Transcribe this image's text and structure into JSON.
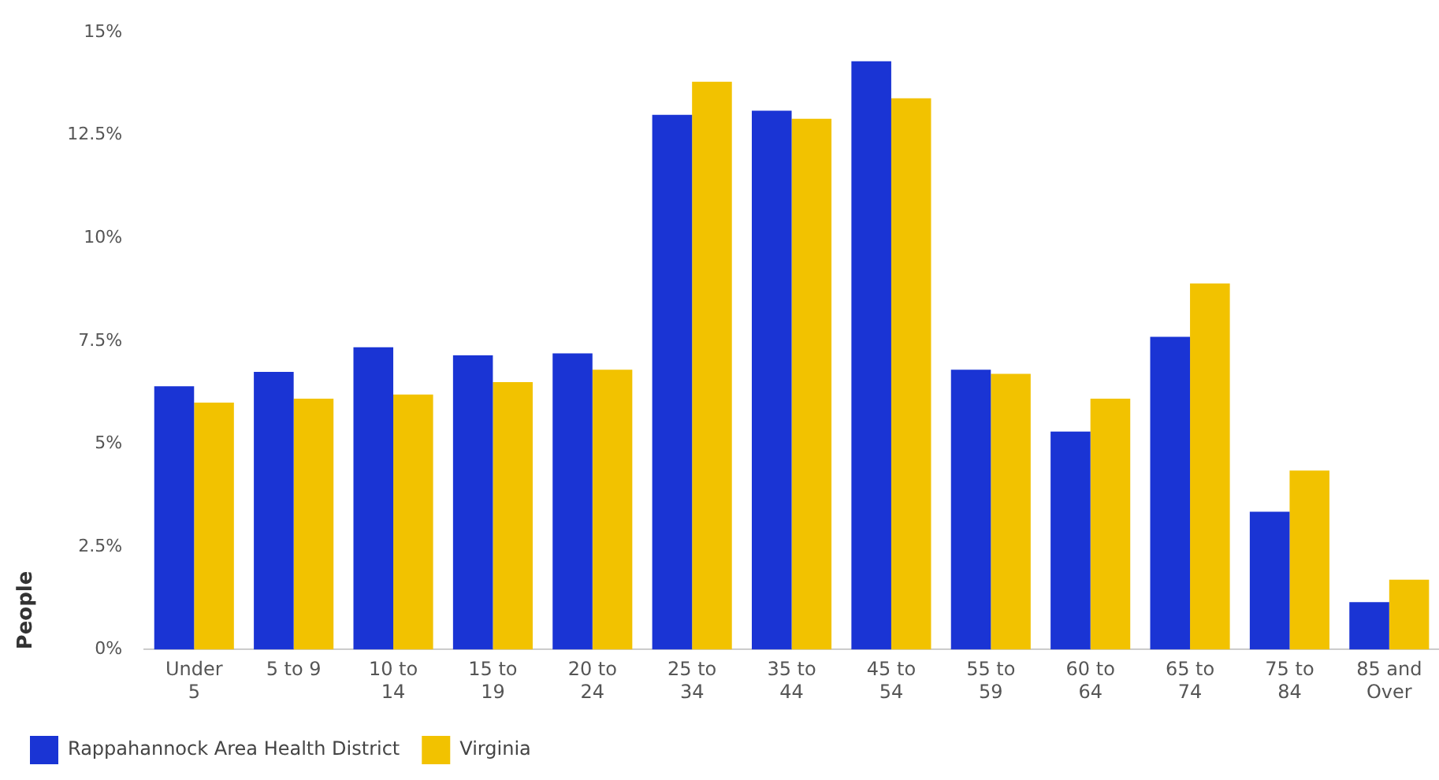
{
  "chart_data": {
    "type": "bar",
    "ylabel": "People",
    "categories": [
      "Under 5",
      "5 to 9",
      "10 to 14",
      "15 to 19",
      "20 to 24",
      "25 to 34",
      "35 to 44",
      "45 to 54",
      "55 to 59",
      "60 to 64",
      "65 to 74",
      "75 to 84",
      "85 and Over"
    ],
    "series": [
      {
        "name": "Rappahannock Area Health District",
        "color": "#1a34d4",
        "values": [
          6.4,
          6.75,
          7.35,
          7.15,
          7.2,
          13.0,
          13.1,
          14.3,
          6.8,
          5.3,
          7.6,
          3.35,
          1.15
        ]
      },
      {
        "name": "Virginia",
        "color": "#f2c200",
        "values": [
          6.0,
          6.1,
          6.2,
          6.5,
          6.8,
          13.8,
          12.9,
          13.4,
          6.7,
          6.1,
          8.9,
          4.35,
          1.7
        ]
      }
    ],
    "ylim": [
      0,
      15
    ],
    "yticks": [
      {
        "value": 0,
        "label": "0%"
      },
      {
        "value": 2.5,
        "label": "2.5%"
      },
      {
        "value": 5,
        "label": "5%"
      },
      {
        "value": 7.5,
        "label": "7.5%"
      },
      {
        "value": 10,
        "label": "10%"
      },
      {
        "value": 12.5,
        "label": "12.5%"
      },
      {
        "value": 15,
        "label": "15%"
      }
    ],
    "grid": false,
    "legend": "bottom left"
  }
}
